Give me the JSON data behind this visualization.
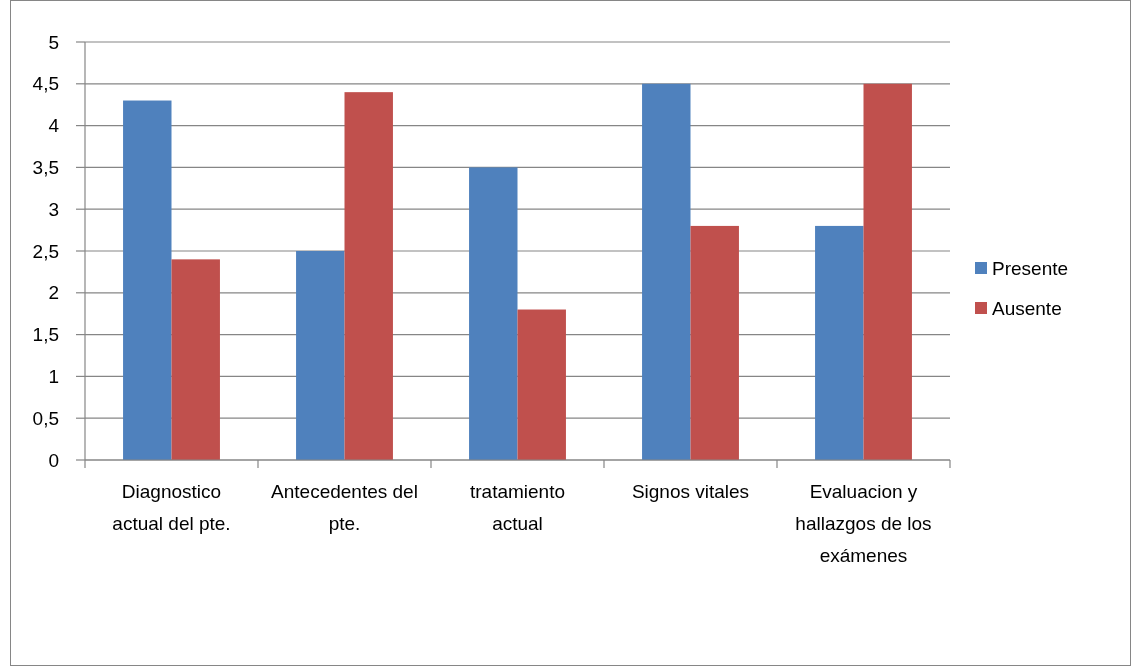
{
  "chart_data": {
    "type": "bar",
    "categories": [
      "Diagnostico actual del pte.",
      "Antecedentes del pte.",
      "tratamiento actual",
      "Signos vitales",
      "Evaluacion y hallazgos de los exámenes"
    ],
    "series": [
      {
        "name": "Presente",
        "color": "#4f81bd",
        "values": [
          4.3,
          2.5,
          3.5,
          4.5,
          2.8
        ]
      },
      {
        "name": "Ausente",
        "color": "#c0504d",
        "values": [
          2.4,
          4.4,
          1.8,
          2.8,
          4.5
        ]
      }
    ],
    "ylim": [
      0,
      5
    ],
    "yticks": [
      0,
      {
        "value": 0.5,
        "label": "0,5"
      },
      1,
      {
        "value": 1.5,
        "label": "1,5"
      },
      2,
      {
        "value": 2.5,
        "label": "2,5"
      },
      3,
      {
        "value": 3.5,
        "label": "3,5"
      },
      4,
      {
        "value": 4.5,
        "label": "4,5"
      },
      5
    ],
    "grid": "y",
    "legend": "right"
  }
}
